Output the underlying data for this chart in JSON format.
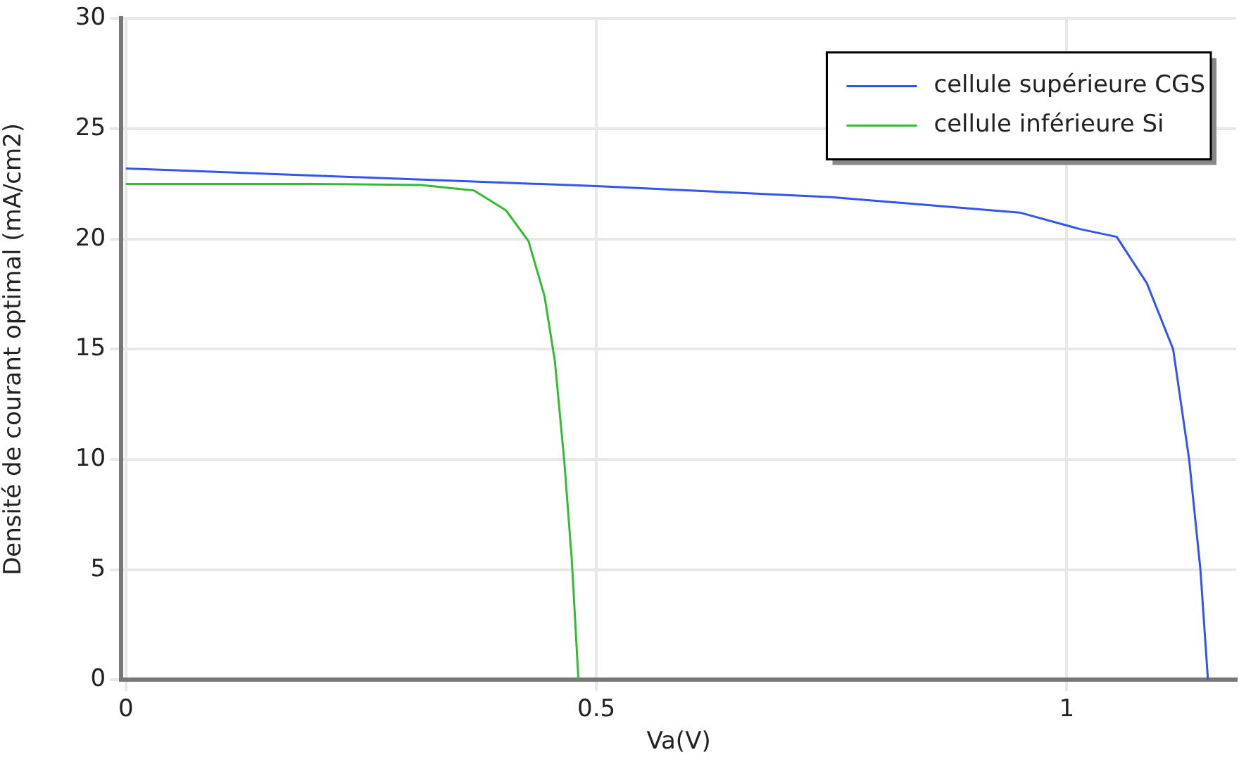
{
  "chart_data": {
    "type": "line",
    "xlabel": "Va(V)",
    "ylabel": "Densité de courant optimal (mA/cm2)",
    "xlim": [
      -0.005,
      1.18
    ],
    "xticks": [
      0,
      0.5,
      1
    ],
    "ylim": [
      0,
      30
    ],
    "yticks": [
      0,
      5,
      10,
      15,
      20,
      25,
      30
    ],
    "grid": true,
    "legend": "top right",
    "marker": "none",
    "line_style": "solid",
    "series": [
      {
        "name": "cellule supérieure CGS",
        "color": "#3355ee",
        "x": [
          0,
          0.25,
          0.5,
          0.75,
          0.95,
          1.014,
          1.053,
          1.085,
          1.113,
          1.13,
          1.142,
          1.15
        ],
        "values": [
          23.2,
          22.8,
          22.4,
          21.9,
          21.2,
          20.45,
          20.1,
          18.0,
          15,
          10,
          5,
          0
        ]
      },
      {
        "name": "cellule inférieure Si",
        "color": "#33bb33",
        "x": [
          0,
          0.2,
          0.314,
          0.37,
          0.404,
          0.428,
          0.445,
          0.456,
          0.466,
          0.474,
          0.481
        ],
        "values": [
          22.5,
          22.5,
          22.45,
          22.2,
          21.3,
          19.9,
          17.4,
          14.45,
          9.9,
          5.4,
          0
        ]
      }
    ]
  }
}
